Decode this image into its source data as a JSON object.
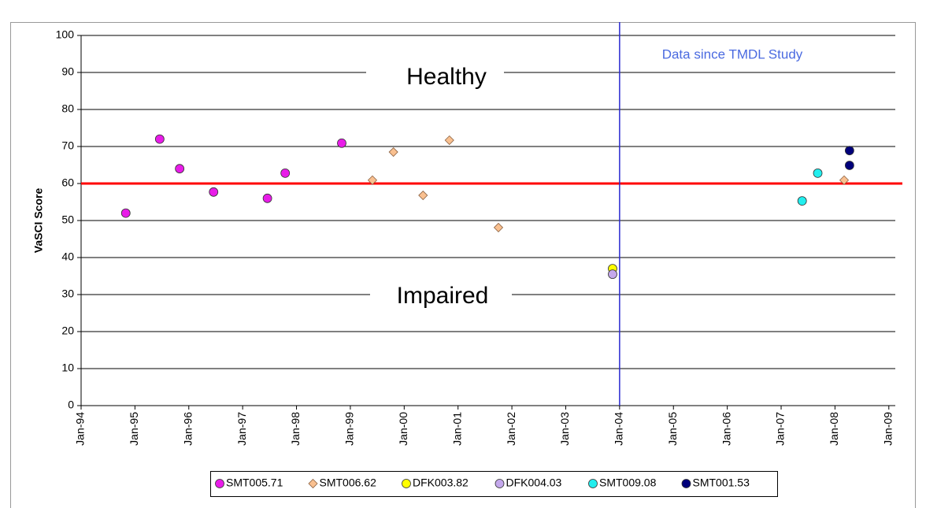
{
  "chart_data": {
    "type": "scatter",
    "y_label": "VaSCI Score",
    "xlim": [
      1994,
      2009.12
    ],
    "ylim": [
      0,
      100
    ],
    "yticks": [
      0,
      10,
      20,
      30,
      40,
      50,
      60,
      70,
      80,
      90,
      100
    ],
    "xticks": [
      {
        "value": 1994,
        "label": "Jan-94"
      },
      {
        "value": 1995,
        "label": "Jan-95"
      },
      {
        "value": 1996,
        "label": "Jan-96"
      },
      {
        "value": 1997,
        "label": "Jan-97"
      },
      {
        "value": 1998,
        "label": "Jan-98"
      },
      {
        "value": 1999,
        "label": "Jan-99"
      },
      {
        "value": 2000,
        "label": "Jan-00"
      },
      {
        "value": 2001,
        "label": "Jan-01"
      },
      {
        "value": 2002,
        "label": "Jan-02"
      },
      {
        "value": 2003,
        "label": "Jan-03"
      },
      {
        "value": 2004,
        "label": "Jan-04"
      },
      {
        "value": 2005,
        "label": "Jan-05"
      },
      {
        "value": 2006,
        "label": "Jan-06"
      },
      {
        "value": 2007,
        "label": "Jan-07"
      },
      {
        "value": 2008,
        "label": "Jan-08"
      },
      {
        "value": 2009,
        "label": "Jan-09"
      }
    ],
    "grid": true,
    "hlines": [
      {
        "value": 60,
        "color": "#ff0000"
      }
    ],
    "vlines": [
      {
        "value": 2004,
        "color": "#2a2ad0"
      }
    ],
    "annotations": [
      "Healthy",
      "Impaired",
      "Data since TMDL Study"
    ],
    "legend": "bottom",
    "series": [
      {
        "name": "SMT005.71",
        "color": "#e81ce8",
        "marker": "circle",
        "x": [
          1994.83,
          1995.46,
          1995.83,
          1996.46,
          1997.46,
          1997.79,
          1998.84
        ],
        "values": [
          52,
          72,
          64,
          57.7,
          56,
          62.8,
          70.9
        ]
      },
      {
        "name": "SMT006.62",
        "color": "#f9c090",
        "marker": "diamond",
        "x": [
          1999.41,
          1999.8,
          2000.35,
          2000.84,
          2001.75,
          2008.17
        ],
        "values": [
          60.9,
          68.5,
          56.8,
          71.7,
          48.1,
          60.9
        ]
      },
      {
        "name": "DFK003.82",
        "color": "#ffff00",
        "marker": "circle",
        "x": [
          2003.87
        ],
        "values": [
          37
        ]
      },
      {
        "name": "DFK004.03",
        "color": "#c4a8ec",
        "marker": "circle",
        "x": [
          2003.87
        ],
        "values": [
          35.5
        ]
      },
      {
        "name": "SMT009.08",
        "color": "#22eeee",
        "marker": "circle",
        "x": [
          2007.39,
          2007.68
        ],
        "values": [
          55.3,
          62.8
        ]
      },
      {
        "name": "SMT001.53",
        "color": "#00007a",
        "marker": "circle",
        "x": [
          2008.27,
          2008.27
        ],
        "values": [
          68.9,
          64.9
        ]
      }
    ]
  }
}
